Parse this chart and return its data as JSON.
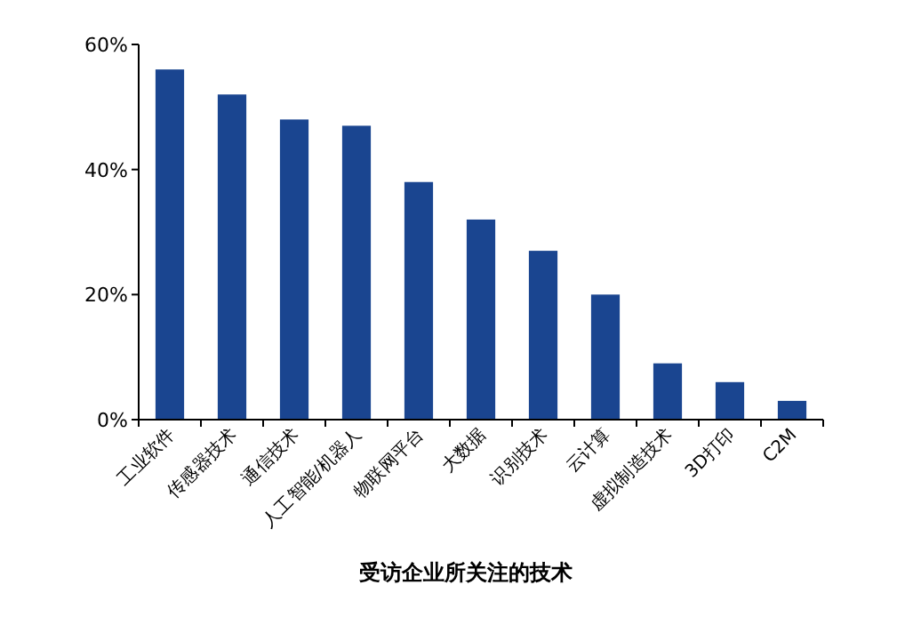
{
  "chart_data": {
    "type": "bar",
    "xlabel": "受访企业所关注的技术",
    "categories": [
      "工业软件",
      "传感器技术",
      "通信技术",
      "人工智能/机器人",
      "物联网平台",
      "大数据",
      "识别技术",
      "云计算",
      "虚拟制造技术",
      "3D打印",
      "C2M"
    ],
    "values": [
      56,
      52,
      48,
      47,
      38,
      32,
      27,
      20,
      9,
      6,
      3
    ],
    "color": "#1a4590",
    "ylim": [
      0,
      60
    ],
    "yticks": [
      {
        "value": 0,
        "label": "0%"
      },
      {
        "value": 20,
        "label": "20%"
      },
      {
        "value": 40,
        "label": "40%"
      },
      {
        "value": 60,
        "label": "60%"
      }
    ],
    "grid": false,
    "legend": false
  }
}
